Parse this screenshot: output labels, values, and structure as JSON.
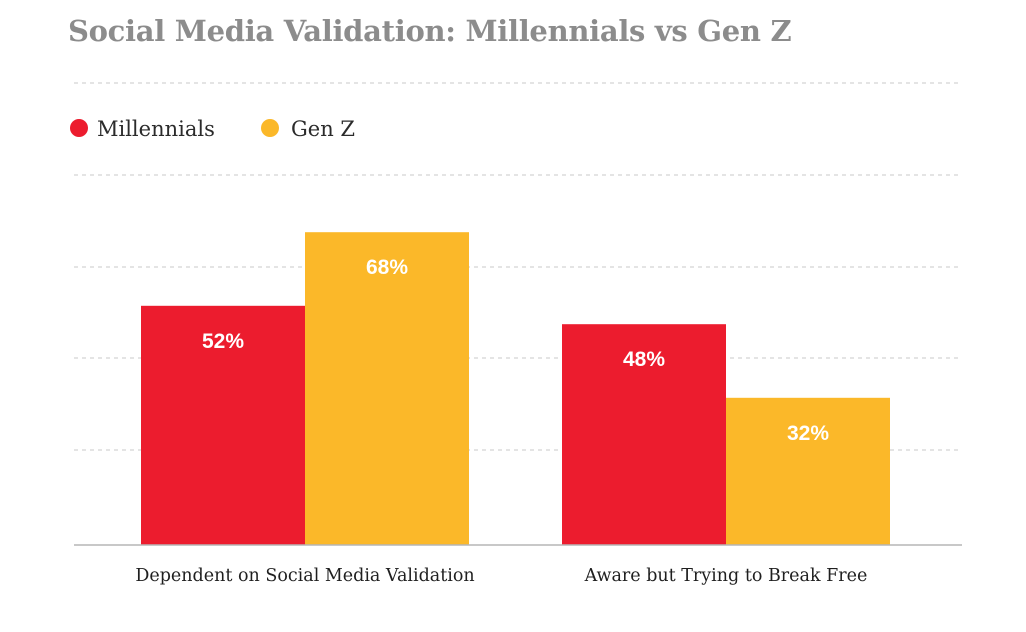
{
  "chart_data": {
    "type": "bar",
    "title": "Social Media Validation: Millennials vs Gen Z",
    "categories": [
      "Dependent on Social Media Validation",
      "Aware but Trying to Break Free"
    ],
    "series": [
      {
        "name": "Millennials",
        "values": [
          52,
          48
        ],
        "labels": [
          "52%",
          "48%"
        ],
        "color": "#ec1c2e"
      },
      {
        "name": "Gen Z",
        "values": [
          68,
          32
        ],
        "labels": [
          "68%",
          "32%"
        ],
        "color": "#fbb829"
      }
    ],
    "ylim": [
      0,
      100
    ],
    "grid": true,
    "legend_position": "top-left"
  }
}
